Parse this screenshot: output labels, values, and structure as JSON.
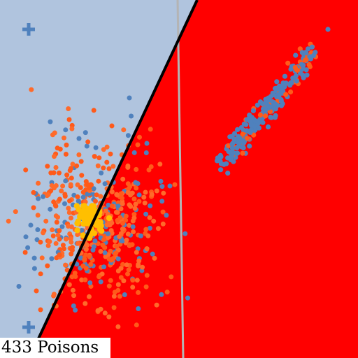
{
  "colors": {
    "safe_region": "#b0c4de",
    "danger_region": "#ff0000",
    "boundary_line": "#000000",
    "reference_line": "#b4b4b4",
    "clean_point": "#4f81bd",
    "poison_point": "#ff5a1a",
    "poison_point_alt": "#ff6a2a",
    "target_cluster": "#ffbf00",
    "cross_marker": "#4f81bd"
  },
  "icons": {
    "markers": "plus-icon"
  },
  "status": {
    "poison_count": "433",
    "poison_label": "Poisons"
  }
}
